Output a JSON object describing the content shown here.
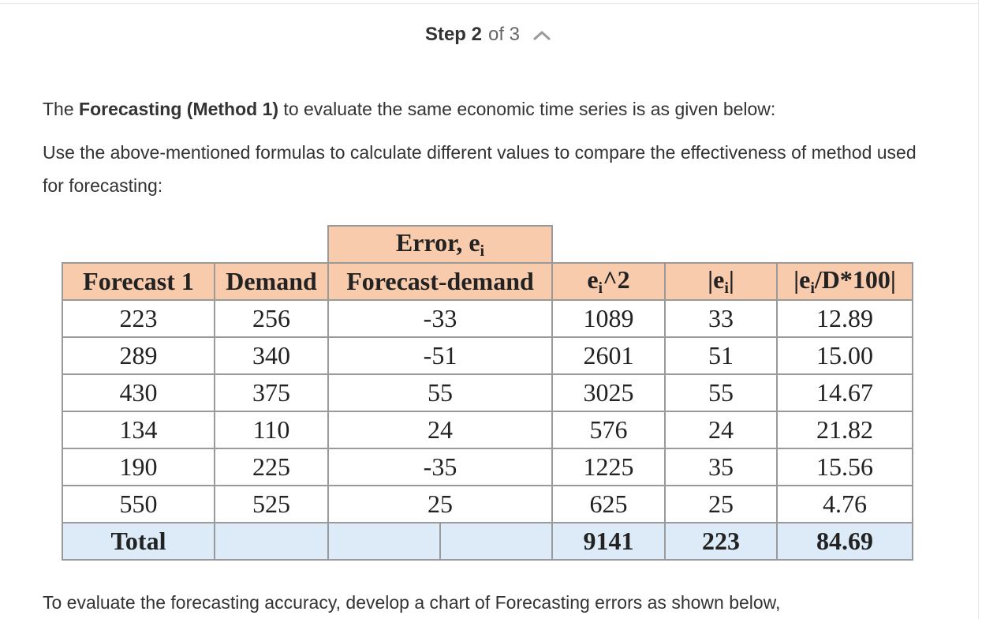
{
  "step": {
    "label": "Step",
    "current": "2",
    "of": "of 3"
  },
  "intro": {
    "prefix": "The ",
    "bold": "Forecasting (Method 1)",
    "suffix": " to evaluate the same economic time series is as given below:"
  },
  "instruction": "Use the above-mentioned formulas to calculate different values to compare the effectiveness of method used for forecasting:",
  "table": {
    "group_header": "Error, e",
    "group_sub": "i",
    "headers": [
      "Forecast 1",
      "Demand",
      "Forecast-demand",
      "e",
      "i",
      "^2",
      "|e",
      "i",
      "|",
      "|e",
      "i",
      "/D*100|"
    ],
    "rows": [
      [
        "223",
        "256",
        "-33",
        "1089",
        "33",
        "12.89"
      ],
      [
        "289",
        "340",
        "-51",
        "2601",
        "51",
        "15.00"
      ],
      [
        "430",
        "375",
        "55",
        "3025",
        "55",
        "14.67"
      ],
      [
        "134",
        "110",
        "24",
        "576",
        "24",
        "21.82"
      ],
      [
        "190",
        "225",
        "-35",
        "1225",
        "35",
        "15.56"
      ],
      [
        "550",
        "525",
        "25",
        "625",
        "25",
        "4.76"
      ]
    ],
    "total": {
      "label": "Total",
      "sq": "9141",
      "abs": "223",
      "pct": "84.69"
    }
  },
  "outro": "To evaluate the forecasting accuracy, develop a chart of Forecasting errors as shown below,"
}
